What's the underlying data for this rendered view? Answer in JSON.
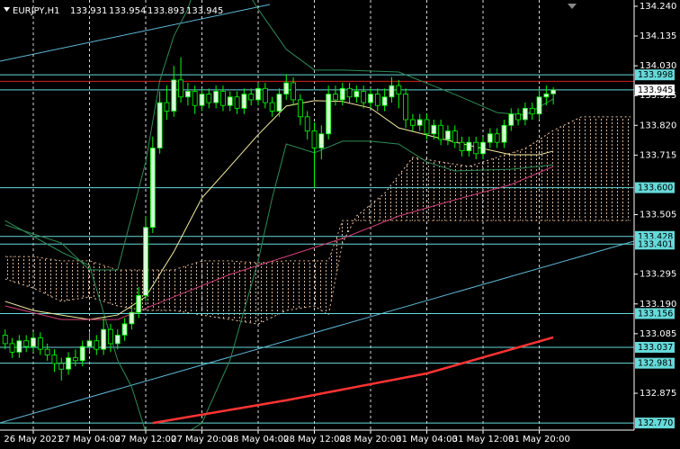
{
  "chart_data": {
    "type": "candlestick",
    "title": "EURJPY,H1",
    "xlim": [
      -0.736,
      89.5
    ],
    "ylim": [
      132.745,
      134.262
    ],
    "grid": true,
    "xticks": [
      {
        "value": 4,
        "label": "26 May 2021"
      },
      {
        "value": 12,
        "label": "27 May 04:00"
      },
      {
        "value": 20,
        "label": "27 May 12:00"
      },
      {
        "value": 28,
        "label": "27 May 20:00"
      },
      {
        "value": 36,
        "label": "28 May 04:00"
      },
      {
        "value": 44,
        "label": "28 May 12:00"
      },
      {
        "value": 52,
        "label": "28 May 20:00"
      },
      {
        "value": 60,
        "label": "31 May 04:00"
      },
      {
        "value": 68,
        "label": "31 May 12:00"
      },
      {
        "value": 76,
        "label": "31 May 20:00"
      }
    ],
    "yticks": [
      {
        "value": 134.24,
        "label": "134.240"
      },
      134.135,
      {
        "value": 134.03,
        "label": "134.030"
      },
      133.925,
      {
        "value": 133.82,
        "label": "133.820"
      },
      133.715,
      133.505,
      133.295,
      {
        "value": 133.19,
        "label": "133.190"
      },
      133.085,
      132.875
    ],
    "up_color": "#d6ffd6",
    "down_color": "#000000",
    "wick_color": "#00ff00",
    "candles": [
      [
        133.08,
        133.1,
        133.03,
        133.05
      ],
      [
        133.05,
        133.07,
        133.0,
        133.02
      ],
      [
        133.02,
        133.08,
        133.0,
        133.06
      ],
      [
        133.06,
        133.08,
        133.02,
        133.04
      ],
      [
        133.04,
        133.09,
        133.02,
        133.07
      ],
      [
        133.07,
        133.09,
        133.01,
        133.03
      ],
      [
        133.03,
        133.05,
        132.99,
        133.01
      ],
      [
        133.01,
        133.03,
        132.95,
        132.98
      ],
      [
        132.98,
        133.0,
        132.92,
        132.96
      ],
      [
        132.96,
        133.02,
        132.94,
        133.0
      ],
      [
        133.0,
        133.03,
        132.97,
        132.99
      ],
      [
        132.99,
        133.06,
        132.97,
        133.04
      ],
      [
        133.04,
        133.09,
        133.02,
        133.06
      ],
      [
        133.06,
        133.08,
        133.01,
        133.03
      ],
      [
        133.03,
        133.14,
        133.01,
        133.1
      ],
      [
        133.1,
        133.12,
        133.02,
        133.05
      ],
      [
        133.05,
        133.1,
        133.03,
        133.08
      ],
      [
        133.08,
        133.14,
        133.06,
        133.12
      ],
      [
        133.12,
        133.18,
        133.1,
        133.16
      ],
      [
        133.16,
        133.25,
        133.14,
        133.22
      ],
      [
        133.22,
        133.5,
        133.2,
        133.46
      ],
      [
        133.46,
        133.78,
        133.44,
        133.74
      ],
      [
        133.74,
        133.94,
        133.72,
        133.9
      ],
      [
        133.9,
        133.96,
        133.84,
        133.87
      ],
      [
        133.87,
        134.03,
        133.85,
        133.98
      ],
      [
        133.98,
        134.06,
        133.9,
        133.92
      ],
      [
        133.92,
        133.97,
        133.89,
        133.94
      ],
      [
        133.94,
        133.96,
        133.86,
        133.89
      ],
      [
        133.89,
        133.95,
        133.87,
        133.93
      ],
      [
        133.93,
        133.95,
        133.88,
        133.9
      ],
      [
        133.9,
        133.96,
        133.88,
        133.94
      ],
      [
        133.94,
        133.96,
        133.87,
        133.89
      ],
      [
        133.89,
        133.94,
        133.87,
        133.92
      ],
      [
        133.92,
        133.94,
        133.86,
        133.88
      ],
      [
        133.88,
        133.95,
        133.86,
        133.93
      ],
      [
        133.93,
        133.95,
        133.89,
        133.91
      ],
      [
        133.91,
        133.97,
        133.89,
        133.95
      ],
      [
        133.95,
        133.97,
        133.88,
        133.9
      ],
      [
        133.9,
        133.92,
        133.85,
        133.87
      ],
      [
        133.87,
        133.95,
        133.85,
        133.93
      ],
      [
        133.93,
        134.0,
        133.91,
        133.97
      ],
      [
        133.97,
        133.99,
        133.89,
        133.91
      ],
      [
        133.91,
        133.93,
        133.82,
        133.85
      ],
      [
        133.85,
        133.87,
        133.77,
        133.8
      ],
      [
        133.8,
        133.83,
        133.6,
        133.74
      ],
      [
        133.74,
        133.82,
        133.7,
        133.79
      ],
      [
        133.79,
        133.96,
        133.77,
        133.93
      ],
      [
        133.93,
        133.96,
        133.89,
        133.91
      ],
      [
        133.91,
        133.97,
        133.89,
        133.95
      ],
      [
        133.95,
        133.97,
        133.9,
        133.92
      ],
      [
        133.92,
        133.96,
        133.9,
        133.94
      ],
      [
        133.94,
        133.96,
        133.88,
        133.9
      ],
      [
        133.9,
        133.95,
        133.88,
        133.93
      ],
      [
        133.93,
        133.95,
        133.87,
        133.89
      ],
      [
        133.89,
        133.95,
        133.87,
        133.92
      ],
      [
        133.92,
        133.99,
        133.9,
        133.96
      ],
      [
        133.96,
        133.98,
        133.88,
        133.93
      ],
      [
        133.93,
        133.95,
        133.81,
        133.84
      ],
      [
        133.84,
        133.86,
        133.8,
        133.82
      ],
      [
        133.82,
        133.86,
        133.8,
        133.84
      ],
      [
        133.84,
        133.86,
        133.77,
        133.79
      ],
      [
        133.79,
        133.84,
        133.77,
        133.82
      ],
      [
        133.82,
        133.84,
        133.75,
        133.77
      ],
      [
        133.77,
        133.82,
        133.75,
        133.8
      ],
      [
        133.8,
        133.82,
        133.74,
        133.76
      ],
      [
        133.76,
        133.78,
        133.71,
        133.73
      ],
      [
        133.73,
        133.78,
        133.71,
        133.76
      ],
      [
        133.76,
        133.78,
        133.7,
        133.72
      ],
      [
        133.72,
        133.78,
        133.7,
        133.76
      ],
      [
        133.76,
        133.81,
        133.74,
        133.79
      ],
      [
        133.79,
        133.81,
        133.74,
        133.76
      ],
      [
        133.76,
        133.84,
        133.74,
        133.82
      ],
      [
        133.82,
        133.88,
        133.8,
        133.86
      ],
      [
        133.86,
        133.88,
        133.82,
        133.84
      ],
      [
        133.84,
        133.9,
        133.82,
        133.88
      ],
      [
        133.88,
        133.9,
        133.84,
        133.86
      ],
      [
        133.86,
        133.95,
        133.84,
        133.92
      ],
      [
        133.92,
        133.96,
        133.89,
        133.931
      ],
      [
        133.931,
        133.954,
        133.893,
        133.945
      ]
    ],
    "cloud": {
      "span_a": {
        "color": "#f2c6a0",
        "x": [
          0,
          4,
          8,
          12,
          16,
          20,
          24,
          28,
          32,
          36,
          40,
          44,
          46,
          48,
          50,
          54,
          58,
          62,
          66,
          70,
          74,
          78,
          82,
          86,
          89
        ],
        "values": [
          133.278,
          133.246,
          133.199,
          133.215,
          133.183,
          133.167,
          133.167,
          133.151,
          133.135,
          133.119,
          133.167,
          133.183,
          133.151,
          133.405,
          133.5,
          133.58,
          133.707,
          133.691,
          133.675,
          133.707,
          133.738,
          133.802,
          133.85,
          133.85,
          133.85
        ]
      },
      "span_b": {
        "color": "#d9a77a",
        "x": [
          0,
          4,
          8,
          12,
          16,
          20,
          24,
          28,
          32,
          36,
          40,
          44,
          46,
          48,
          60,
          75,
          89
        ],
        "values": [
          133.357,
          133.357,
          133.342,
          133.342,
          133.31,
          133.31,
          133.31,
          133.342,
          133.342,
          133.335,
          133.342,
          133.342,
          133.342,
          133.484,
          133.484,
          133.484,
          133.484
        ]
      }
    },
    "indicators": [
      {
        "color": "#2e8b57",
        "width": 1,
        "x": [
          0,
          8,
          12,
          16,
          20,
          22,
          24,
          26,
          28,
          32,
          36,
          40,
          44,
          48,
          56,
          64,
          70,
          74,
          78
        ],
        "values": [
          133.469,
          133.405,
          133.31,
          133.31,
          133.691,
          133.977,
          134.135,
          134.23,
          134.389,
          134.389,
          134.23,
          134.088,
          134.015,
          134.015,
          134.008,
          133.929,
          133.865,
          133.856,
          133.913
        ]
      },
      {
        "color": "#2e8b57",
        "width": 1,
        "x": [
          0,
          8,
          12,
          16,
          18,
          20,
          24,
          28,
          32,
          36,
          38,
          40,
          44,
          48,
          52,
          56,
          60,
          64,
          72,
          78
        ],
        "values": [
          133.484,
          133.373,
          133.326,
          132.992,
          132.897,
          132.738,
          132.707,
          132.77,
          132.992,
          133.342,
          133.564,
          133.754,
          133.723,
          133.764,
          133.764,
          133.754,
          133.691,
          133.659,
          133.665,
          133.681
        ]
      },
      {
        "color": "#f5eda0",
        "width": 1,
        "x": [
          0,
          4,
          8,
          12,
          16,
          20,
          24,
          28,
          32,
          36,
          40,
          44,
          48,
          52,
          56,
          60,
          64,
          68,
          72,
          76,
          78
        ],
        "values": [
          133.199,
          133.167,
          133.151,
          133.135,
          133.151,
          133.215,
          133.374,
          133.564,
          133.675,
          133.787,
          133.888,
          133.907,
          133.904,
          133.881,
          133.811,
          133.786,
          133.761,
          133.738,
          133.716,
          133.716,
          133.729
        ]
      },
      {
        "color": "#d6407a",
        "width": 1,
        "x": [
          0,
          8,
          16,
          24,
          32,
          40,
          48,
          56,
          64,
          72,
          78
        ],
        "values": [
          133.183,
          133.135,
          133.135,
          133.215,
          133.294,
          133.357,
          133.421,
          133.5,
          133.557,
          133.611,
          133.675
        ]
      },
      {
        "color": "#ff3333",
        "width": 2.5,
        "x": [
          21,
          40,
          60,
          78
        ],
        "values": [
          132.77,
          132.85,
          132.945,
          133.072
        ]
      }
    ],
    "hlines": [
      {
        "value": 133.998,
        "color": "#66d9d9",
        "label_bg": "#66d9d9"
      },
      {
        "value": 133.975,
        "color": "#d02020"
      },
      {
        "value": 133.945,
        "color": "#66d9d9",
        "label_bg": "#ffffff"
      },
      {
        "value": 133.6,
        "label": "133.600",
        "color": "#66d9d9",
        "label_bg": "#66d9d9"
      },
      {
        "value": 133.428,
        "color": "#66d9d9",
        "label_bg": "#66d9d9"
      },
      {
        "value": 133.401,
        "color": "#66d9d9",
        "label_bg": "#66d9d9"
      },
      {
        "value": 133.156,
        "color": "#66d9d9",
        "label_bg": "#66d9d9"
      },
      {
        "value": 133.037,
        "color": "#66d9d9",
        "label_bg": "#66d9d9"
      },
      {
        "value": 132.981,
        "color": "#66d9d9",
        "label_bg": "#66d9d9"
      },
      {
        "value": 132.77,
        "label": "132.770",
        "color": "#66d9d9",
        "label_bg": "#66d9d9"
      }
    ]
  }
}
